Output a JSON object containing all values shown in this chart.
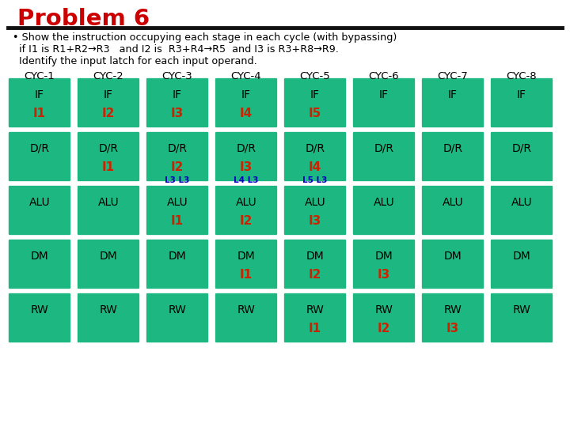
{
  "title": "Problem 6",
  "title_color": "#cc0000",
  "subtitle_lines": [
    "• Show the instruction occupying each stage in each cycle (with bypassing)",
    "  if I1 is R1+R2→R3   and I2 is  R3+R4→R5  and I3 is R3+R8→R9.",
    "  Identify the input latch for each input operand."
  ],
  "cycles": [
    "CYC-1",
    "CYC-2",
    "CYC-3",
    "CYC-4",
    "CYC-5",
    "CYC-6",
    "CYC-7",
    "CYC-8"
  ],
  "stages": [
    "IF",
    "D/R",
    "ALU",
    "DM",
    "RW"
  ],
  "bg_color": "#1db882",
  "cell_text_color": "#000000",
  "instr_color": "#cc2200",
  "latch_color": "#0000bb",
  "grid_data": {
    "IF": [
      "I1",
      "I2",
      "I3",
      "I4",
      "I5",
      "",
      "",
      ""
    ],
    "D/R": [
      "",
      "I1",
      "I2",
      "I3",
      "I4",
      "",
      "",
      ""
    ],
    "ALU": [
      "",
      "",
      "I1",
      "I2",
      "I3",
      "",
      "",
      ""
    ],
    "DM": [
      "",
      "",
      "",
      "I1",
      "I2",
      "I3",
      "",
      ""
    ],
    "RW": [
      "",
      "",
      "",
      "",
      "I1",
      "I2",
      "I3",
      ""
    ]
  },
  "latch_data": {
    "ALU": {
      "2": "L3 L3",
      "3": "L4 L3",
      "4": "L5 L3"
    }
  }
}
